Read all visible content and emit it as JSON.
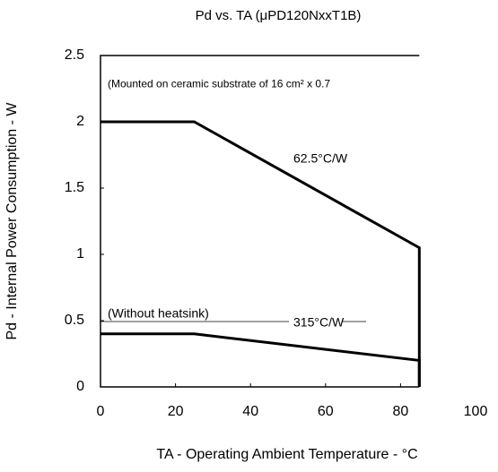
{
  "chart_data": {
    "type": "line",
    "title": "Pd vs. TA (μPD120NxxT1B)",
    "x_label": "TA - Operating Ambient Temperature - °C",
    "y_label": "Pd - Internal Power Consumption - W",
    "x": [
      0,
      25,
      85,
      85
    ],
    "series": [
      {
        "name": "(Mounted on ceramic substrate of 16 cm² x 0.7",
        "color": "#000000",
        "values": [
          2,
          2,
          1.05,
          0
        ]
      },
      {
        "name": "(Without heatsink)",
        "color": "#000000",
        "values": [
          0.4,
          0.4,
          0.2,
          0
        ]
      }
    ],
    "annotations": [
      "62.5°C/W",
      "315°C/W"
    ],
    "xlim": [
      0,
      100
    ],
    "xticks": [
      0,
      20,
      40,
      60,
      80,
      100
    ],
    "ylim": [
      0,
      2.5
    ],
    "yticks": [
      0,
      0.5,
      1,
      1.5,
      2,
      2.5
    ],
    "grid": false
  }
}
